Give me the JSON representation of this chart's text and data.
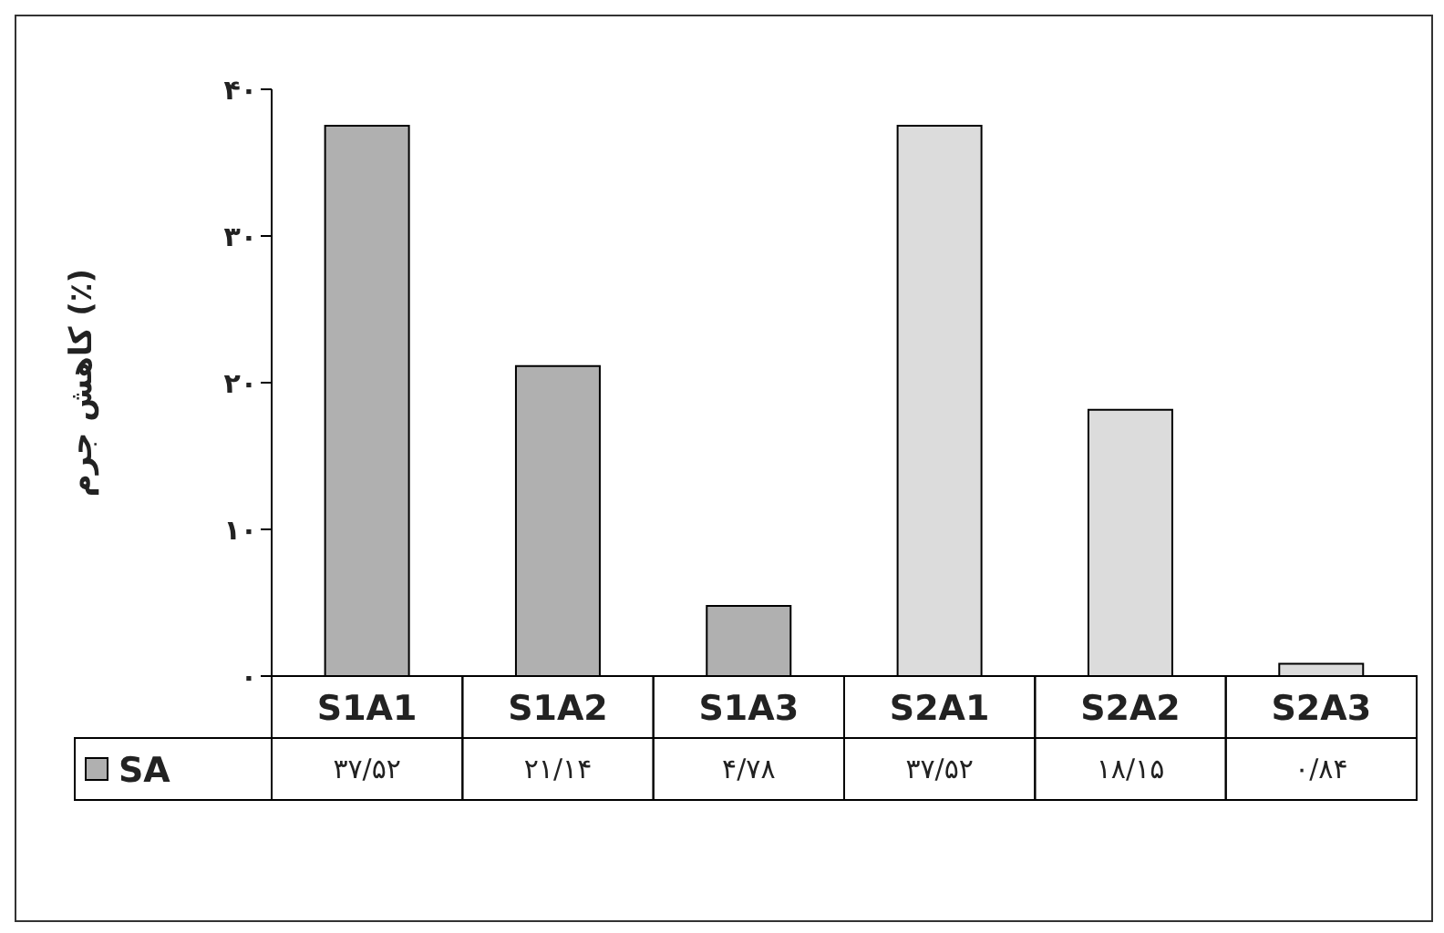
{
  "chart_data": {
    "type": "bar",
    "ylabel": "کاهش جرم (٪)",
    "categories": [
      "S1A1",
      "S1A2",
      "S1A3",
      "S2A1",
      "S2A2",
      "S2A3"
    ],
    "series": [
      {
        "name": "SA",
        "color": "#b0b0b0",
        "colors": [
          "#b0b0b0",
          "#b0b0b0",
          "#b0b0b0",
          "#dcdcdc",
          "#dcdcdc",
          "#dcdcdc"
        ],
        "values": [
          37.52,
          21.14,
          4.78,
          37.52,
          18.15,
          0.84
        ],
        "value_labels": [
          "۳۷/۵۲",
          "۲۱/۱۴",
          "۴/۷۸",
          "۳۷/۵۲",
          "۱۸/۱۵",
          "۰/۸۴"
        ]
      }
    ],
    "ylim": [
      0,
      40
    ],
    "yticks": [
      {
        "value": 0,
        "label": "۰"
      },
      {
        "value": 10,
        "label": "۱۰"
      },
      {
        "value": 20,
        "label": "۲۰"
      },
      {
        "value": 30,
        "label": "۳۰"
      },
      {
        "value": 40,
        "label": "۴۰"
      }
    ],
    "grid": false,
    "legend": "bottom left"
  }
}
